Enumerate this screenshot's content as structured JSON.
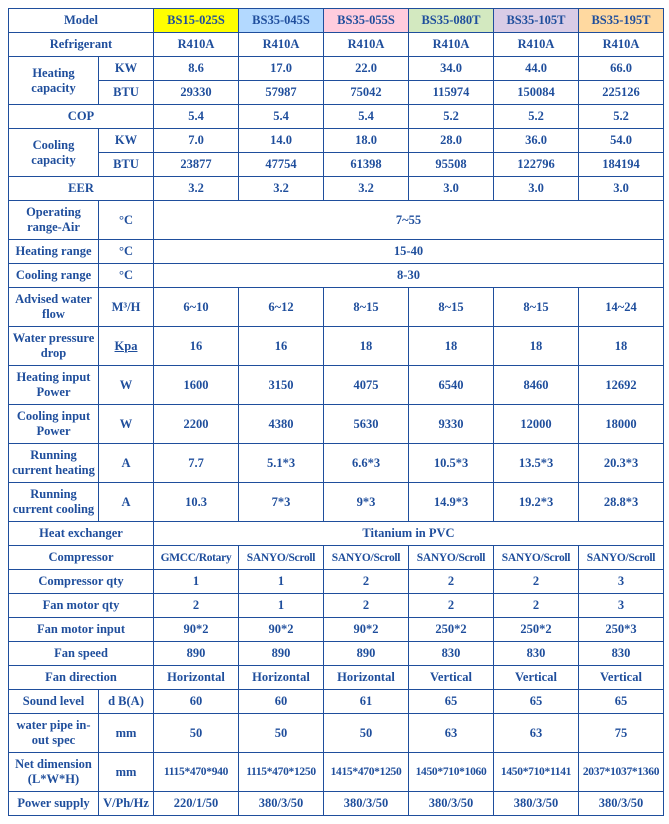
{
  "models": {
    "label": "Model",
    "cols": [
      {
        "name": "BS15-025S",
        "bg": "#ffff00"
      },
      {
        "name": "BS35-045S",
        "bg": "#b3d9ff"
      },
      {
        "name": "BS35-055S",
        "bg": "#ffccdd"
      },
      {
        "name": "BS35-080T",
        "bg": "#d3e9c0"
      },
      {
        "name": "BS35-105T",
        "bg": "#d9cce6"
      },
      {
        "name": "BS35-195T",
        "bg": "#ffd9a0"
      }
    ]
  },
  "rows": [
    {
      "label": "Refrigerant",
      "unit": "",
      "vals": [
        "R410A",
        "R410A",
        "R410A",
        "R410A",
        "R410A",
        "R410A"
      ]
    },
    {
      "label": "Heating capacity",
      "rowspan": 2,
      "unit": "KW",
      "vals": [
        "8.6",
        "17.0",
        "22.0",
        "34.0",
        "44.0",
        "66.0"
      ]
    },
    {
      "unit": "BTU",
      "vals": [
        "29330",
        "57987",
        "75042",
        "115974",
        "150084",
        "225126"
      ]
    },
    {
      "label": "COP",
      "unit": "",
      "vals": [
        "5.4",
        "5.4",
        "5.4",
        "5.2",
        "5.2",
        "5.2"
      ]
    },
    {
      "label": "Cooling capacity",
      "rowspan": 2,
      "unit": "KW",
      "vals": [
        "7.0",
        "14.0",
        "18.0",
        "28.0",
        "36.0",
        "54.0"
      ]
    },
    {
      "unit": "BTU",
      "vals": [
        "23877",
        "47754",
        "61398",
        "95508",
        "122796",
        "184194"
      ]
    },
    {
      "label": "EER",
      "unit": "",
      "vals": [
        "3.2",
        "3.2",
        "3.2",
        "3.0",
        "3.0",
        "3.0"
      ]
    },
    {
      "label": "Operating range-Air",
      "unit": "°C",
      "span": "7~55"
    },
    {
      "label": "Heating range",
      "unit": "°C",
      "span": "15-40"
    },
    {
      "label": "Cooling range",
      "unit": "°C",
      "span": "8-30"
    },
    {
      "label": "Advised water flow",
      "unit": "M³/H",
      "vals": [
        "6~10",
        "6~12",
        "8~15",
        "8~15",
        "8~15",
        "14~24"
      ]
    },
    {
      "label": "Water pressure drop",
      "unit": "Kpa",
      "u_underline": true,
      "vals": [
        "16",
        "16",
        "18",
        "18",
        "18",
        "18"
      ]
    },
    {
      "label": "Heating input Power",
      "unit": "W",
      "vals": [
        "1600",
        "3150",
        "4075",
        "6540",
        "8460",
        "12692"
      ]
    },
    {
      "label": "Cooling input Power",
      "unit": "W",
      "vals": [
        "2200",
        "4380",
        "5630",
        "9330",
        "12000",
        "18000"
      ]
    },
    {
      "label": "Running current heating",
      "unit": "A",
      "vals": [
        "7.7",
        "5.1*3",
        "6.6*3",
        "10.5*3",
        "13.5*3",
        "20.3*3"
      ]
    },
    {
      "label": "Running current cooling",
      "unit": "A",
      "vals": [
        "10.3",
        "7*3",
        "9*3",
        "14.9*3",
        "19.2*3",
        "28.8*3"
      ]
    },
    {
      "label": "Heat exchanger",
      "unit": "",
      "span": "Titanium in PVC"
    },
    {
      "label": "Compressor",
      "unit": "",
      "vals": [
        "GMCC/Rotary",
        "SANYO/Scroll",
        "SANYO/Scroll",
        "SANYO/Scroll",
        "SANYO/Scroll",
        "SANYO/Scroll"
      ],
      "small": true
    },
    {
      "label": "Compressor qty",
      "unit": "",
      "vals": [
        "1",
        "1",
        "2",
        "2",
        "2",
        "3"
      ]
    },
    {
      "label": "Fan motor qty",
      "unit": "",
      "vals": [
        "2",
        "1",
        "2",
        "2",
        "2",
        "3"
      ]
    },
    {
      "label": "Fan motor input",
      "unit": "",
      "vals": [
        "90*2",
        "90*2",
        "90*2",
        "250*2",
        "250*2",
        "250*3"
      ]
    },
    {
      "label": "Fan speed",
      "unit": "",
      "vals": [
        "890",
        "890",
        "890",
        "830",
        "830",
        "830"
      ]
    },
    {
      "label": "Fan direction",
      "unit": "",
      "vals": [
        "Horizontal",
        "Horizontal",
        "Horizontal",
        "Vertical",
        "Vertical",
        "Vertical"
      ]
    },
    {
      "label": "Sound level",
      "unit": "d B(A)",
      "vals": [
        "60",
        "60",
        "61",
        "65",
        "65",
        "65"
      ]
    },
    {
      "label": "water pipe in-out spec",
      "unit": "mm",
      "vals": [
        "50",
        "50",
        "50",
        "63",
        "63",
        "75"
      ]
    },
    {
      "label": "Net dimension (L*W*H)",
      "unit": "mm",
      "vals": [
        "1115*470*940",
        "1115*470*1250",
        "1415*470*1250",
        "1450*710*1060",
        "1450*710*1141",
        "2037*1037*1360"
      ],
      "small": true
    },
    {
      "label": "Power supply",
      "unit": "V/Ph/Hz",
      "vals": [
        "220/1/50",
        "380/3/50",
        "380/3/50",
        "380/3/50",
        "380/3/50",
        "380/3/50"
      ]
    }
  ]
}
